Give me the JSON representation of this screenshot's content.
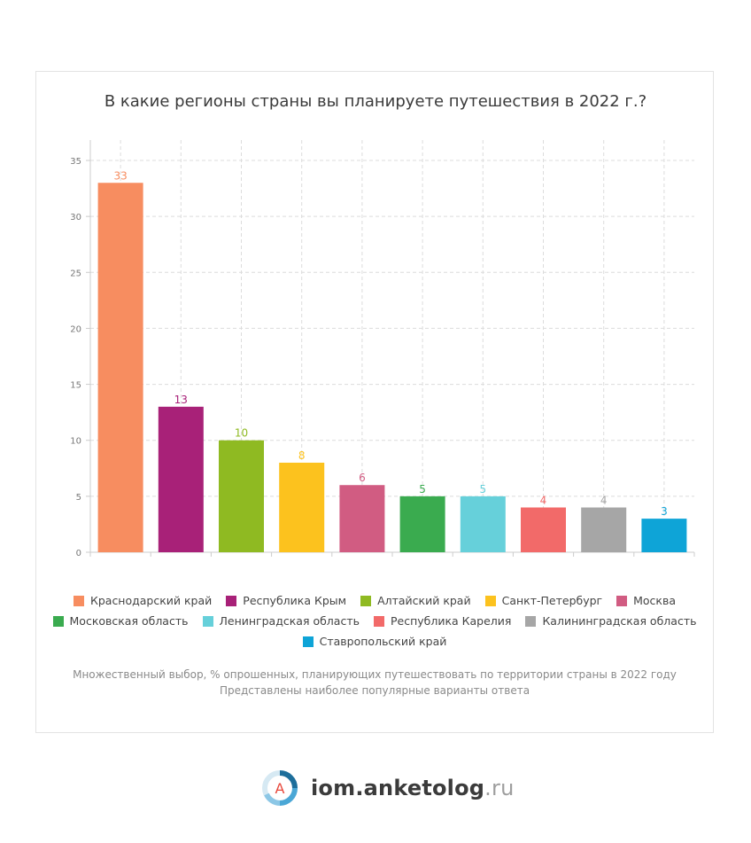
{
  "chart_data": {
    "type": "bar",
    "title": "В какие регионы страны вы планируете путешествия в 2022 г.?",
    "categories": [
      "Краснодарский край",
      "Республика Крым",
      "Алтайский край",
      "Санкт-Петербург",
      "Москва",
      "Московская область",
      "Ленинградская область",
      "Республика Карелия",
      "Калининградская область",
      "Ставропольский край"
    ],
    "values": [
      33,
      13,
      10,
      8,
      6,
      5,
      5,
      4,
      4,
      3
    ],
    "colors": [
      "#f78d60",
      "#a82178",
      "#8fba22",
      "#fcc21e",
      "#d15c82",
      "#3aab4f",
      "#66d0da",
      "#f26a69",
      "#a6a6a6",
      "#0ea4d7"
    ],
    "ylim": [
      0,
      35
    ],
    "yticks": [
      0,
      5,
      10,
      15,
      20,
      25,
      30,
      35
    ],
    "grid": true,
    "legend_position": "bottom"
  },
  "legend_rows": [
    [
      0,
      1,
      2,
      3,
      4
    ],
    [
      5,
      6,
      7,
      8
    ],
    [
      9
    ]
  ],
  "note": [
    "Множественный выбор, % опрошенных, планирующих путешествовать по территории страны в 2022 году",
    "Представлены наиболее популярные варианты ответа"
  ],
  "logo": {
    "name": "iom.anketolog",
    "tld": ".ru",
    "letter": "A"
  }
}
